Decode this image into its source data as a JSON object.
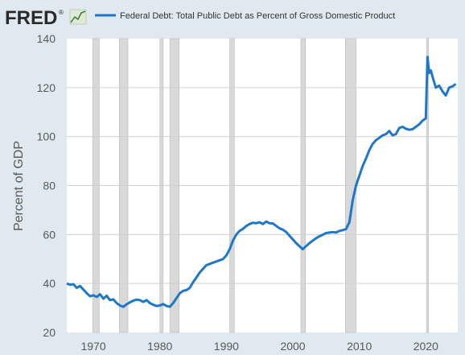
{
  "logo": {
    "text": "FRED",
    "mark": "®",
    "icon": "line-chart-icon"
  },
  "colors": {
    "background": "#e1e9f0",
    "plot_background": "#ffffff",
    "series": "#1f77c9",
    "recession": "#d9d9d9",
    "grid": "#d0d0d0",
    "text": "#595959"
  },
  "chart_data": {
    "type": "line",
    "title": "",
    "xlabel": "",
    "ylabel": "Percent of GDP",
    "xlim": [
      1966,
      2024.8
    ],
    "ylim": [
      20,
      140
    ],
    "yticks": [
      20,
      40,
      60,
      80,
      100,
      120,
      140
    ],
    "xticks": [
      1970,
      1980,
      1990,
      2000,
      2010,
      2020
    ],
    "grid": "horizontal",
    "legend_position": "top",
    "series": [
      {
        "name": "Federal Debt: Total Public Debt as Percent of Gross Domestic Product",
        "points": [
          [
            1966.0,
            40.0
          ],
          [
            1966.5,
            39.5
          ],
          [
            1967.0,
            39.7
          ],
          [
            1967.5,
            38.2
          ],
          [
            1968.0,
            39.0
          ],
          [
            1968.5,
            37.5
          ],
          [
            1969.0,
            36.0
          ],
          [
            1969.5,
            34.8
          ],
          [
            1970.0,
            35.2
          ],
          [
            1970.5,
            34.5
          ],
          [
            1971.0,
            35.6
          ],
          [
            1971.5,
            33.8
          ],
          [
            1972.0,
            35.0
          ],
          [
            1972.5,
            33.2
          ],
          [
            1973.0,
            33.5
          ],
          [
            1973.5,
            32.0
          ],
          [
            1974.0,
            31.0
          ],
          [
            1974.5,
            30.5
          ],
          [
            1975.0,
            31.5
          ],
          [
            1975.5,
            32.3
          ],
          [
            1976.0,
            33.0
          ],
          [
            1976.5,
            33.4
          ],
          [
            1977.0,
            33.2
          ],
          [
            1977.5,
            32.5
          ],
          [
            1978.0,
            33.2
          ],
          [
            1978.5,
            32.0
          ],
          [
            1979.0,
            31.3
          ],
          [
            1979.5,
            30.8
          ],
          [
            1980.0,
            31.0
          ],
          [
            1980.5,
            31.6
          ],
          [
            1981.0,
            30.8
          ],
          [
            1981.5,
            30.5
          ],
          [
            1982.0,
            32.0
          ],
          [
            1982.5,
            34.0
          ],
          [
            1983.0,
            36.0
          ],
          [
            1983.5,
            37.0
          ],
          [
            1984.0,
            37.3
          ],
          [
            1984.5,
            38.2
          ],
          [
            1985.0,
            40.5
          ],
          [
            1985.5,
            42.5
          ],
          [
            1986.0,
            44.5
          ],
          [
            1986.5,
            46.0
          ],
          [
            1987.0,
            47.5
          ],
          [
            1987.5,
            48.0
          ],
          [
            1988.0,
            48.5
          ],
          [
            1988.5,
            49.0
          ],
          [
            1989.0,
            49.5
          ],
          [
            1989.5,
            50.0
          ],
          [
            1990.0,
            51.5
          ],
          [
            1990.5,
            54.0
          ],
          [
            1991.0,
            57.5
          ],
          [
            1991.5,
            60.0
          ],
          [
            1992.0,
            61.5
          ],
          [
            1992.5,
            62.3
          ],
          [
            1993.0,
            63.5
          ],
          [
            1993.5,
            64.3
          ],
          [
            1994.0,
            64.8
          ],
          [
            1994.5,
            64.6
          ],
          [
            1995.0,
            65.0
          ],
          [
            1995.5,
            64.3
          ],
          [
            1996.0,
            65.3
          ],
          [
            1996.5,
            64.6
          ],
          [
            1997.0,
            64.5
          ],
          [
            1997.5,
            63.5
          ],
          [
            1998.0,
            62.5
          ],
          [
            1998.5,
            62.0
          ],
          [
            1999.0,
            61.0
          ],
          [
            1999.5,
            59.5
          ],
          [
            2000.0,
            58.0
          ],
          [
            2000.5,
            56.5
          ],
          [
            2001.0,
            55.2
          ],
          [
            2001.5,
            54.0
          ],
          [
            2002.0,
            55.3
          ],
          [
            2002.5,
            56.5
          ],
          [
            2003.0,
            57.5
          ],
          [
            2003.5,
            58.5
          ],
          [
            2004.0,
            59.3
          ],
          [
            2004.5,
            59.9
          ],
          [
            2005.0,
            60.6
          ],
          [
            2005.5,
            60.8
          ],
          [
            2006.0,
            61.0
          ],
          [
            2006.5,
            60.8
          ],
          [
            2007.0,
            61.5
          ],
          [
            2007.5,
            61.8
          ],
          [
            2008.0,
            62.2
          ],
          [
            2008.5,
            65.0
          ],
          [
            2009.0,
            74.0
          ],
          [
            2009.5,
            80.0
          ],
          [
            2010.0,
            84.0
          ],
          [
            2010.5,
            88.0
          ],
          [
            2011.0,
            91.0
          ],
          [
            2011.5,
            94.5
          ],
          [
            2012.0,
            97.0
          ],
          [
            2012.5,
            98.5
          ],
          [
            2013.0,
            99.5
          ],
          [
            2013.5,
            100.5
          ],
          [
            2014.0,
            101.0
          ],
          [
            2014.5,
            102.3
          ],
          [
            2015.0,
            100.5
          ],
          [
            2015.5,
            101.0
          ],
          [
            2016.0,
            103.5
          ],
          [
            2016.5,
            104.0
          ],
          [
            2017.0,
            103.2
          ],
          [
            2017.5,
            102.8
          ],
          [
            2018.0,
            103.0
          ],
          [
            2018.5,
            104.0
          ],
          [
            2019.0,
            105.0
          ],
          [
            2019.5,
            106.5
          ],
          [
            2020.0,
            107.5
          ],
          [
            2020.25,
            132.5
          ],
          [
            2020.5,
            126.0
          ],
          [
            2020.75,
            127.0
          ],
          [
            2021.0,
            124.5
          ],
          [
            2021.5,
            120.0
          ],
          [
            2022.0,
            120.8
          ],
          [
            2022.5,
            118.5
          ],
          [
            2023.0,
            116.8
          ],
          [
            2023.5,
            120.0
          ],
          [
            2024.0,
            120.5
          ],
          [
            2024.5,
            121.5
          ]
        ]
      }
    ],
    "recessions": [
      [
        1969.9,
        1970.9
      ],
      [
        1973.9,
        1975.2
      ],
      [
        1980.0,
        1980.5
      ],
      [
        1981.5,
        1982.9
      ],
      [
        1990.5,
        1991.2
      ],
      [
        2001.2,
        2001.9
      ],
      [
        2007.9,
        2009.5
      ],
      [
        2020.1,
        2020.4
      ]
    ]
  }
}
